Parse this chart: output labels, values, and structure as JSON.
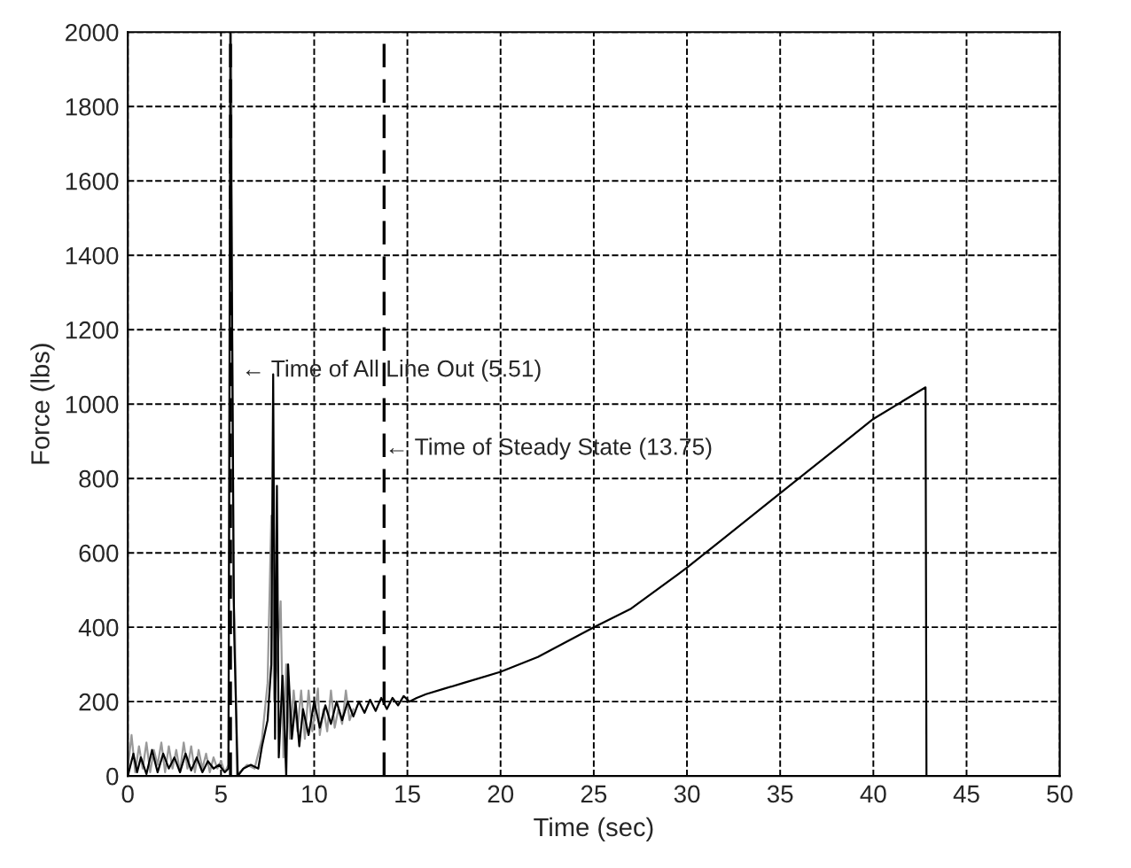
{
  "chart_data": {
    "type": "line",
    "xlabel": "Time (sec)",
    "ylabel": "Force (lbs)",
    "xlim": [
      0,
      50
    ],
    "xticks": [
      0,
      5,
      10,
      15,
      20,
      25,
      30,
      35,
      40,
      45,
      50
    ],
    "ylim": [
      0,
      2000
    ],
    "yticks": [
      0,
      200,
      400,
      600,
      800,
      1000,
      1200,
      1400,
      1600,
      1800,
      2000
    ],
    "grid": true,
    "line_style": "solid",
    "marker": "none",
    "series": [
      {
        "color": "#999999",
        "x": [
          0,
          0.2,
          0.4,
          0.6,
          0.8,
          1.0,
          1.2,
          1.4,
          1.6,
          1.8,
          2.0,
          2.2,
          2.4,
          2.6,
          2.8,
          3.0,
          3.2,
          3.4,
          3.6,
          3.8,
          4.0,
          4.2,
          4.4,
          4.6,
          4.8,
          5.0,
          5.2,
          5.4,
          5.55,
          5.65,
          5.75,
          5.85,
          6.0,
          6.4,
          6.8,
          7.2,
          7.5,
          7.7,
          7.85,
          8.0,
          8.2,
          8.35,
          8.5,
          8.7,
          8.9,
          9.1,
          9.3,
          9.5,
          9.7,
          9.9,
          10.2,
          10.3,
          10.5,
          10.7,
          10.9,
          11.1,
          11.3,
          11.5,
          11.7,
          11.9,
          12.1
        ],
        "values": [
          20,
          110,
          10,
          80,
          20,
          90,
          10,
          70,
          30,
          90,
          10,
          80,
          20,
          70,
          10,
          90,
          20,
          80,
          10,
          70,
          20,
          60,
          10,
          50,
          20,
          40,
          10,
          30,
          2000,
          500,
          400,
          0,
          10,
          30,
          20,
          100,
          250,
          700,
          200,
          300,
          470,
          50,
          300,
          100,
          230,
          120,
          230,
          100,
          230,
          120,
          235,
          110,
          180,
          120,
          230,
          130,
          180,
          140,
          230,
          150,
          180
        ]
      },
      {
        "color": "#000000",
        "x": [
          0,
          0.3,
          0.5,
          0.7,
          1.0,
          1.3,
          1.6,
          1.9,
          2.2,
          2.5,
          2.8,
          3.1,
          3.4,
          3.7,
          4.0,
          4.3,
          4.6,
          4.9,
          5.2,
          5.4,
          5.5,
          5.6,
          5.7,
          5.8,
          5.9,
          6.2,
          6.6,
          7.0,
          7.2,
          7.5,
          7.7,
          7.8,
          7.9,
          8.0,
          8.1,
          8.3,
          8.5,
          8.6,
          8.8,
          9.0,
          9.2,
          9.4,
          9.7,
          10.0,
          10.3,
          10.6,
          10.9,
          11.2,
          11.5,
          11.8,
          12.1,
          12.4,
          12.7,
          13.0,
          13.3,
          13.6,
          13.9,
          14.2,
          14.5,
          14.8,
          15.1,
          15.5,
          16,
          17,
          18,
          20,
          22,
          25,
          27,
          30,
          32,
          35,
          38,
          40,
          42.8,
          42.85
        ],
        "values": [
          0,
          60,
          10,
          50,
          5,
          70,
          10,
          60,
          20,
          50,
          10,
          60,
          15,
          50,
          10,
          40,
          20,
          30,
          10,
          20,
          2000,
          1200,
          400,
          200,
          0,
          20,
          30,
          20,
          80,
          150,
          300,
          1080,
          100,
          780,
          50,
          270,
          0,
          300,
          100,
          200,
          80,
          180,
          110,
          200,
          130,
          190,
          140,
          200,
          150,
          200,
          160,
          200,
          170,
          205,
          175,
          210,
          180,
          210,
          190,
          215,
          200,
          210,
          220,
          235,
          250,
          280,
          320,
          400,
          450,
          560,
          640,
          760,
          880,
          960,
          1045,
          0
        ]
      }
    ],
    "ref_lines": [
      {
        "axis": "x",
        "value": 5.51,
        "color": "#000000",
        "line_style": "dashed"
      },
      {
        "axis": "x",
        "value": 13.75,
        "color": "#000000",
        "line_style": "dashed"
      }
    ],
    "annotations": [
      {
        "text": "← Time of All Line Out (5.51)",
        "x": 6.1,
        "y": 1090
      },
      {
        "text": "← Time of Steady State (13.75)",
        "x": 13.8,
        "y": 880
      }
    ]
  }
}
